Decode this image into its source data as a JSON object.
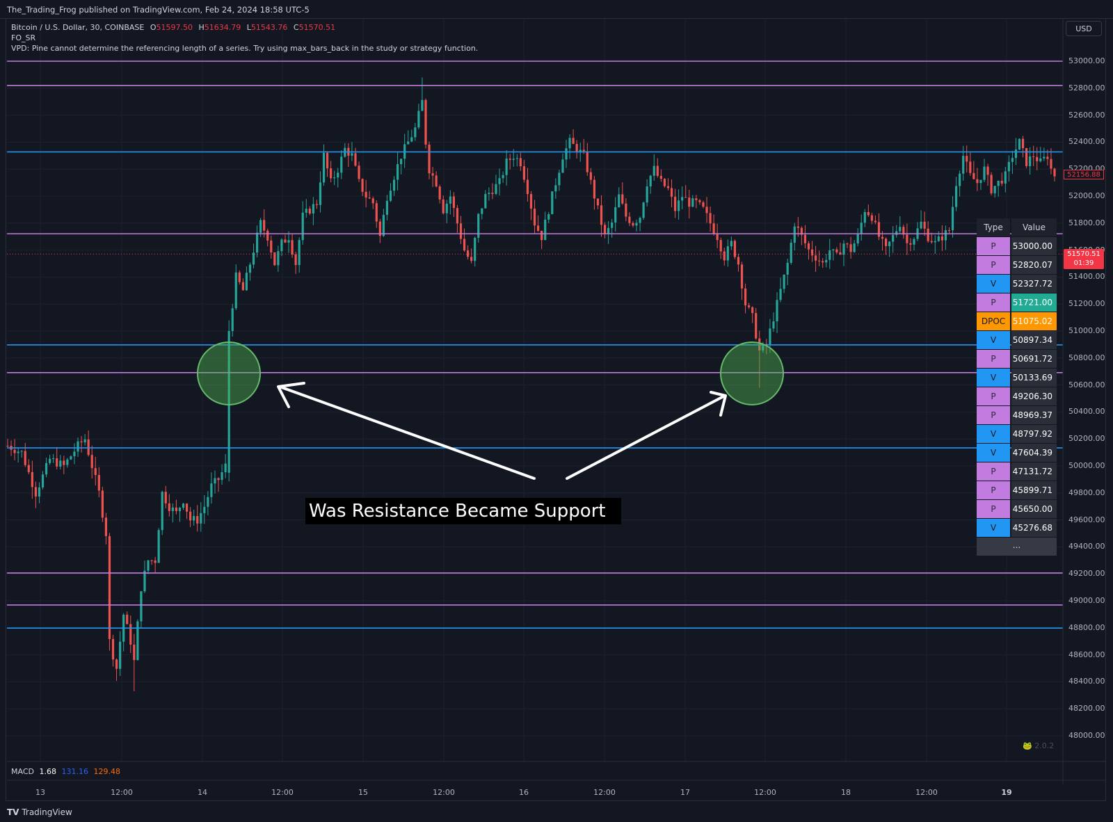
{
  "header": {
    "published_text": "The_Trading_Frog published on TradingView.com, Feb 24, 2024 18:58 UTC-5"
  },
  "legend": {
    "symbol": "Bitcoin / U.S. Dollar, 30, COINBASE",
    "open_label": "O",
    "open": "51597.50",
    "high_label": "H",
    "high": "51634.79",
    "low_label": "L",
    "low": "51543.76",
    "close_label": "C",
    "close": "51570.51",
    "indicator": "FO_SR",
    "error": "VPD: Pine cannot determine the referencing length of a series. Try using max_bars_back in the study or strategy function."
  },
  "currency_button": "USD",
  "price_axis": {
    "ticks": [
      "53000.00",
      "52800.00",
      "52600.00",
      "52400.00",
      "52200.00",
      "52000.00",
      "51800.00",
      "51600.00",
      "51400.00",
      "51200.00",
      "51000.00",
      "50800.00",
      "50600.00",
      "50400.00",
      "50200.00",
      "50000.00",
      "49800.00",
      "49600.00",
      "49400.00",
      "49200.00",
      "49000.00",
      "48800.00",
      "48600.00",
      "48400.00",
      "48200.00",
      "48000.00"
    ],
    "last_price_label": "52156.88",
    "current_price": "51570.51",
    "countdown": "01:39"
  },
  "levels_table": {
    "header": {
      "type": "Type",
      "value": "Value"
    },
    "rows": [
      {
        "type": "P",
        "value": "53000.00"
      },
      {
        "type": "P",
        "value": "52820.07"
      },
      {
        "type": "V",
        "value": "52327.72"
      },
      {
        "type": "P",
        "value": "51721.00"
      },
      {
        "type": "DPOC",
        "value": "51075.02"
      },
      {
        "type": "V",
        "value": "50897.34"
      },
      {
        "type": "P",
        "value": "50691.72"
      },
      {
        "type": "V",
        "value": "50133.69"
      },
      {
        "type": "P",
        "value": "49206.30"
      },
      {
        "type": "P",
        "value": "48969.37"
      },
      {
        "type": "V",
        "value": "48797.92"
      },
      {
        "type": "V",
        "value": "47604.39"
      },
      {
        "type": "P",
        "value": "47131.72"
      },
      {
        "type": "P",
        "value": "45899.71"
      },
      {
        "type": "P",
        "value": "45650.00"
      },
      {
        "type": "V",
        "value": "45276.68"
      }
    ],
    "more": "..."
  },
  "annotation": "Was Resistance Became Support",
  "macd": {
    "label": "MACD",
    "v1": "1.68",
    "v2": "131.16",
    "v3": "129.48"
  },
  "time_axis": [
    "13",
    "12:00",
    "14",
    "12:00",
    "15",
    "12:00",
    "16",
    "12:00",
    "17",
    "12:00",
    "18",
    "12:00",
    "19"
  ],
  "footer": {
    "brand": "TradingView"
  },
  "version": "2.0.2",
  "colors": {
    "background": "#131722",
    "up": "#26a69a",
    "down": "#ef5350",
    "p_level": "#c27bdf",
    "v_level": "#2196f3",
    "dpoc": "#ff9800",
    "highlight_green": "#26a69a",
    "last_price": "#f23645"
  },
  "chart_data": {
    "type": "candlestick",
    "symbol": "Bitcoin / U.S. Dollar",
    "interval": "30",
    "ylim": [
      47950,
      53050
    ],
    "horizontal_levels": [
      {
        "kind": "P",
        "value": 53000.0
      },
      {
        "kind": "P",
        "value": 52820.07
      },
      {
        "kind": "V",
        "value": 52327.72
      },
      {
        "kind": "P",
        "value": 51721.0
      },
      {
        "kind": "V",
        "value": 50897.34
      },
      {
        "kind": "P",
        "value": 50691.72
      },
      {
        "kind": "V",
        "value": 50133.69
      },
      {
        "kind": "P",
        "value": 49206.3
      },
      {
        "kind": "P",
        "value": 48969.37
      },
      {
        "kind": "V",
        "value": 48797.92
      }
    ],
    "price_path": [
      [
        0,
        50150
      ],
      [
        4,
        50100
      ],
      [
        8,
        49800
      ],
      [
        12,
        50050
      ],
      [
        16,
        50000
      ],
      [
        20,
        50150
      ],
      [
        22,
        50200
      ],
      [
        24,
        50000
      ],
      [
        26,
        49800
      ],
      [
        28,
        49500
      ],
      [
        29,
        48700
      ],
      [
        31,
        48500
      ],
      [
        33,
        48900
      ],
      [
        35,
        48700
      ],
      [
        36,
        48550
      ],
      [
        38,
        49100
      ],
      [
        40,
        49300
      ],
      [
        42,
        49300
      ],
      [
        44,
        49800
      ],
      [
        46,
        49700
      ],
      [
        48,
        49650
      ],
      [
        50,
        49750
      ],
      [
        52,
        49600
      ],
      [
        54,
        49600
      ],
      [
        56,
        49700
      ],
      [
        58,
        49850
      ],
      [
        60,
        49900
      ],
      [
        62,
        50000
      ],
      [
        63,
        51000
      ],
      [
        65,
        51400
      ],
      [
        67,
        51300
      ],
      [
        70,
        51600
      ],
      [
        72,
        51800
      ],
      [
        74,
        51700
      ],
      [
        76,
        51500
      ],
      [
        78,
        51650
      ],
      [
        80,
        51700
      ],
      [
        82,
        51500
      ],
      [
        84,
        51850
      ],
      [
        86,
        51900
      ],
      [
        88,
        51950
      ],
      [
        90,
        52300
      ],
      [
        92,
        52100
      ],
      [
        94,
        52200
      ],
      [
        96,
        52350
      ],
      [
        98,
        52300
      ],
      [
        100,
        52100
      ],
      [
        102,
        52000
      ],
      [
        104,
        51950
      ],
      [
        106,
        51700
      ],
      [
        108,
        52000
      ],
      [
        110,
        52150
      ],
      [
        112,
        52300
      ],
      [
        114,
        52400
      ],
      [
        116,
        52500
      ],
      [
        118,
        52700
      ],
      [
        119,
        52400
      ],
      [
        120,
        52200
      ],
      [
        122,
        52100
      ],
      [
        124,
        51900
      ],
      [
        126,
        52000
      ],
      [
        128,
        51800
      ],
      [
        130,
        51600
      ],
      [
        132,
        51500
      ],
      [
        134,
        51850
      ],
      [
        136,
        52000
      ],
      [
        138,
        52050
      ],
      [
        140,
        52100
      ],
      [
        142,
        52250
      ],
      [
        144,
        52300
      ],
      [
        146,
        52250
      ],
      [
        148,
        52050
      ],
      [
        150,
        51800
      ],
      [
        152,
        51700
      ],
      [
        154,
        51900
      ],
      [
        156,
        52100
      ],
      [
        158,
        52300
      ],
      [
        160,
        52400
      ],
      [
        162,
        52350
      ],
      [
        164,
        52300
      ],
      [
        166,
        52100
      ],
      [
        168,
        51900
      ],
      [
        170,
        51700
      ],
      [
        172,
        51800
      ],
      [
        174,
        52000
      ],
      [
        176,
        51850
      ],
      [
        178,
        51800
      ],
      [
        180,
        51850
      ],
      [
        182,
        52100
      ],
      [
        184,
        52200
      ],
      [
        186,
        52100
      ],
      [
        188,
        52050
      ],
      [
        190,
        51900
      ],
      [
        192,
        52000
      ],
      [
        194,
        51950
      ],
      [
        196,
        51950
      ],
      [
        198,
        51900
      ],
      [
        200,
        51800
      ],
      [
        202,
        51700
      ],
      [
        204,
        51550
      ],
      [
        206,
        51650
      ],
      [
        208,
        51500
      ],
      [
        210,
        51200
      ],
      [
        212,
        51100
      ],
      [
        214,
        50850
      ],
      [
        216,
        50900
      ],
      [
        218,
        51100
      ],
      [
        220,
        51300
      ],
      [
        222,
        51500
      ],
      [
        224,
        51800
      ],
      [
        226,
        51700
      ],
      [
        228,
        51600
      ],
      [
        230,
        51550
      ],
      [
        232,
        51500
      ],
      [
        234,
        51600
      ],
      [
        236,
        51550
      ],
      [
        238,
        51650
      ],
      [
        240,
        51600
      ],
      [
        242,
        51700
      ],
      [
        244,
        51900
      ],
      [
        246,
        51850
      ],
      [
        248,
        51700
      ],
      [
        250,
        51600
      ],
      [
        252,
        51700
      ],
      [
        254,
        51800
      ],
      [
        256,
        51650
      ],
      [
        258,
        51700
      ],
      [
        260,
        51800
      ],
      [
        262,
        51700
      ],
      [
        264,
        51650
      ],
      [
        266,
        51700
      ],
      [
        268,
        51750
      ],
      [
        270,
        52100
      ],
      [
        272,
        52300
      ],
      [
        274,
        52150
      ],
      [
        276,
        52100
      ],
      [
        278,
        52200
      ],
      [
        280,
        52050
      ],
      [
        282,
        52100
      ],
      [
        284,
        52150
      ],
      [
        286,
        52300
      ],
      [
        288,
        52400
      ],
      [
        290,
        52250
      ],
      [
        292,
        52300
      ],
      [
        294,
        52250
      ],
      [
        296,
        52300
      ],
      [
        297,
        52200
      ],
      [
        298,
        52156
      ]
    ]
  }
}
